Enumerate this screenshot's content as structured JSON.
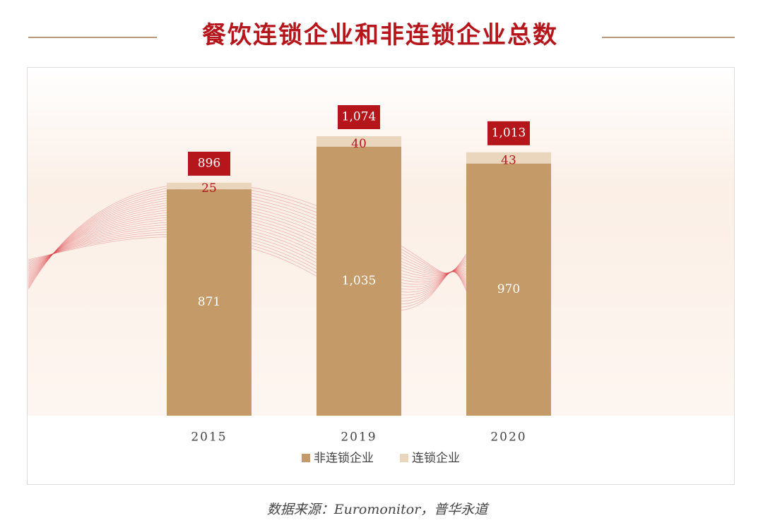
{
  "chart_data": {
    "type": "stacked-bar",
    "title": "餐饮连锁企业和非连锁企业总数",
    "categories": [
      "2015",
      "2019",
      "2020"
    ],
    "series": [
      {
        "name": "非连锁企业",
        "color": "#c49a68",
        "values": [
          871,
          1035,
          970
        ],
        "value_labels": [
          "871",
          "1,035",
          "970"
        ]
      },
      {
        "name": "连锁企业",
        "color": "#ead6bc",
        "values": [
          25,
          40,
          43
        ],
        "value_labels": [
          "25",
          "40",
          "43"
        ]
      }
    ],
    "totals": [
      896,
      1074,
      1013
    ],
    "total_labels": [
      "896",
      "1,074",
      "1,013"
    ],
    "total_color": "#b5161b",
    "source": "数据来源：Euromonitor，普华永道"
  }
}
